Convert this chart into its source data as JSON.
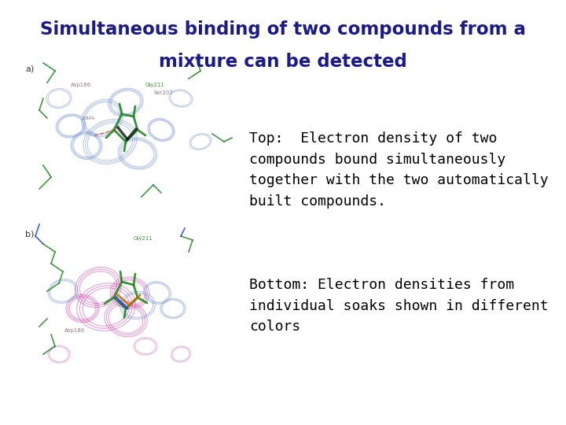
{
  "title_line1": "Simultaneous binding of two compounds from a",
  "title_line2": "mixture can be detected",
  "title_color": "#1a1a8c",
  "title_fontsize": 16.5,
  "title_fontweight": "bold",
  "bg_color": "#ffffff",
  "text_top_label": "Top:  Electron density of two\ncompounds bound simultaneously\ntogether with the two automatically\nbuilt compounds.",
  "text_bottom_label": "Bottom: Electron densities from\nindividual soaks shown in different\ncolors",
  "text_fontsize": 13,
  "text_color": "#000000",
  "label_a": "a)",
  "label_b": "b)"
}
